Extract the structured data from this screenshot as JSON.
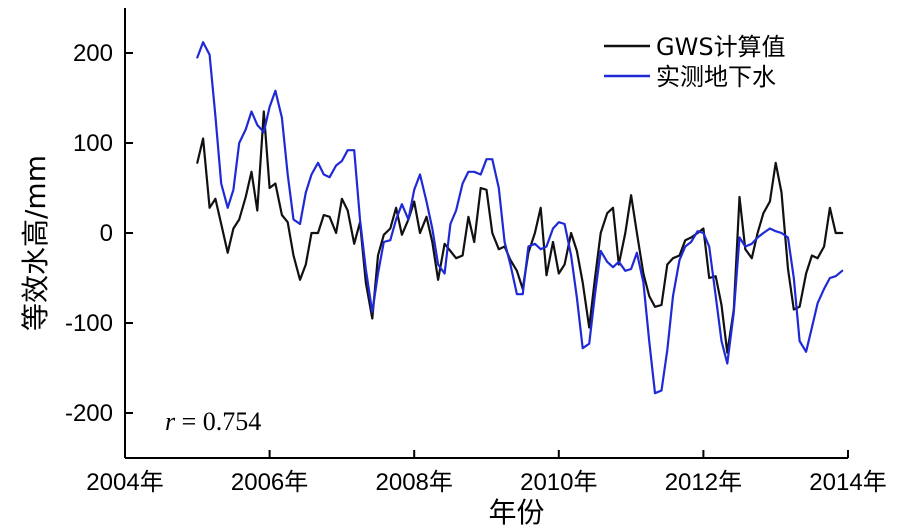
{
  "chart_data": {
    "type": "line",
    "xlabel": "年份",
    "ylabel": "等效水高/mm",
    "xlim": [
      2004,
      2014
    ],
    "ylim": [
      -250,
      250
    ],
    "x_ticks": [
      2004,
      2006,
      2008,
      2010,
      2012,
      2014
    ],
    "x_tick_labels": [
      "2004年",
      "2006年",
      "2008年",
      "2010年",
      "2012年",
      "2014年"
    ],
    "y_ticks": [
      -200,
      -100,
      0,
      100,
      200
    ],
    "y_tick_labels": [
      "-200",
      "-100",
      "0",
      "100",
      "200"
    ],
    "grid": false,
    "legend_position": "top-right",
    "annotation": {
      "prefix": "r",
      "text": " = 0.754"
    },
    "series": [
      {
        "name": "GWS计算值",
        "color": "#111111",
        "points": [
          [
            2005.0,
            78
          ],
          [
            2005.08,
            105
          ],
          [
            2005.17,
            28
          ],
          [
            2005.25,
            38
          ],
          [
            2005.33,
            10
          ],
          [
            2005.42,
            -22
          ],
          [
            2005.5,
            5
          ],
          [
            2005.58,
            15
          ],
          [
            2005.67,
            40
          ],
          [
            2005.75,
            68
          ],
          [
            2005.83,
            25
          ],
          [
            2005.92,
            135
          ],
          [
            2006.0,
            50
          ],
          [
            2006.08,
            55
          ],
          [
            2006.17,
            20
          ],
          [
            2006.25,
            12
          ],
          [
            2006.33,
            -25
          ],
          [
            2006.42,
            -52
          ],
          [
            2006.5,
            -35
          ],
          [
            2006.58,
            0
          ],
          [
            2006.67,
            0
          ],
          [
            2006.75,
            20
          ],
          [
            2006.83,
            18
          ],
          [
            2006.92,
            0
          ],
          [
            2007.0,
            38
          ],
          [
            2007.08,
            25
          ],
          [
            2007.17,
            -12
          ],
          [
            2007.25,
            12
          ],
          [
            2007.33,
            -55
          ],
          [
            2007.42,
            -95
          ],
          [
            2007.5,
            -25
          ],
          [
            2007.58,
            -2
          ],
          [
            2007.67,
            5
          ],
          [
            2007.75,
            28
          ],
          [
            2007.83,
            -2
          ],
          [
            2007.92,
            15
          ],
          [
            2008.0,
            35
          ],
          [
            2008.08,
            0
          ],
          [
            2008.17,
            18
          ],
          [
            2008.25,
            -10
          ],
          [
            2008.33,
            -52
          ],
          [
            2008.42,
            -12
          ],
          [
            2008.5,
            -20
          ],
          [
            2008.58,
            -28
          ],
          [
            2008.67,
            -25
          ],
          [
            2008.75,
            18
          ],
          [
            2008.83,
            -10
          ],
          [
            2008.92,
            50
          ],
          [
            2009.0,
            48
          ],
          [
            2009.08,
            0
          ],
          [
            2009.17,
            -18
          ],
          [
            2009.25,
            -15
          ],
          [
            2009.33,
            -30
          ],
          [
            2009.42,
            -42
          ],
          [
            2009.5,
            -62
          ],
          [
            2009.58,
            -22
          ],
          [
            2009.67,
            0
          ],
          [
            2009.75,
            28
          ],
          [
            2009.83,
            -47
          ],
          [
            2009.92,
            -10
          ],
          [
            2010.0,
            -45
          ],
          [
            2010.08,
            -35
          ],
          [
            2010.17,
            0
          ],
          [
            2010.25,
            -20
          ],
          [
            2010.33,
            -55
          ],
          [
            2010.42,
            -105
          ],
          [
            2010.5,
            -50
          ],
          [
            2010.58,
            0
          ],
          [
            2010.67,
            22
          ],
          [
            2010.75,
            28
          ],
          [
            2010.83,
            -35
          ],
          [
            2010.92,
            0
          ],
          [
            2011.0,
            42
          ],
          [
            2011.08,
            0
          ],
          [
            2011.17,
            -45
          ],
          [
            2011.25,
            -70
          ],
          [
            2011.33,
            -82
          ],
          [
            2011.42,
            -80
          ],
          [
            2011.5,
            -35
          ],
          [
            2011.58,
            -28
          ],
          [
            2011.67,
            -25
          ],
          [
            2011.75,
            -8
          ],
          [
            2011.83,
            -5
          ],
          [
            2011.92,
            0
          ],
          [
            2012.0,
            5
          ],
          [
            2012.08,
            -50
          ],
          [
            2012.17,
            -48
          ],
          [
            2012.25,
            -80
          ],
          [
            2012.33,
            -133
          ],
          [
            2012.42,
            -85
          ],
          [
            2012.5,
            40
          ],
          [
            2012.58,
            -18
          ],
          [
            2012.67,
            -28
          ],
          [
            2012.75,
            0
          ],
          [
            2012.83,
            22
          ],
          [
            2012.92,
            35
          ],
          [
            2013.0,
            78
          ],
          [
            2013.08,
            45
          ],
          [
            2013.17,
            -40
          ],
          [
            2013.25,
            -85
          ],
          [
            2013.33,
            -82
          ],
          [
            2013.42,
            -45
          ],
          [
            2013.5,
            -25
          ],
          [
            2013.58,
            -28
          ],
          [
            2013.67,
            -15
          ],
          [
            2013.75,
            28
          ],
          [
            2013.83,
            0
          ],
          [
            2013.92,
            0
          ]
        ]
      },
      {
        "name": "实测地下水",
        "color": "#1f2ad6",
        "points": [
          [
            2005.0,
            195
          ],
          [
            2005.08,
            212
          ],
          [
            2005.17,
            198
          ],
          [
            2005.25,
            130
          ],
          [
            2005.33,
            55
          ],
          [
            2005.42,
            28
          ],
          [
            2005.5,
            48
          ],
          [
            2005.58,
            100
          ],
          [
            2005.67,
            115
          ],
          [
            2005.75,
            135
          ],
          [
            2005.83,
            120
          ],
          [
            2005.92,
            112
          ],
          [
            2006.0,
            140
          ],
          [
            2006.08,
            158
          ],
          [
            2006.17,
            128
          ],
          [
            2006.25,
            65
          ],
          [
            2006.33,
            15
          ],
          [
            2006.42,
            10
          ],
          [
            2006.5,
            45
          ],
          [
            2006.58,
            65
          ],
          [
            2006.67,
            78
          ],
          [
            2006.75,
            65
          ],
          [
            2006.83,
            62
          ],
          [
            2006.92,
            75
          ],
          [
            2007.0,
            80
          ],
          [
            2007.08,
            92
          ],
          [
            2007.17,
            92
          ],
          [
            2007.25,
            15
          ],
          [
            2007.33,
            -40
          ],
          [
            2007.42,
            -88
          ],
          [
            2007.5,
            -45
          ],
          [
            2007.58,
            -10
          ],
          [
            2007.67,
            -8
          ],
          [
            2007.75,
            15
          ],
          [
            2007.83,
            32
          ],
          [
            2007.92,
            15
          ],
          [
            2008.0,
            48
          ],
          [
            2008.08,
            65
          ],
          [
            2008.17,
            35
          ],
          [
            2008.25,
            5
          ],
          [
            2008.33,
            -35
          ],
          [
            2008.42,
            -45
          ],
          [
            2008.5,
            10
          ],
          [
            2008.58,
            25
          ],
          [
            2008.67,
            55
          ],
          [
            2008.75,
            68
          ],
          [
            2008.83,
            68
          ],
          [
            2008.92,
            65
          ],
          [
            2009.0,
            82
          ],
          [
            2009.08,
            82
          ],
          [
            2009.17,
            50
          ],
          [
            2009.25,
            -10
          ],
          [
            2009.33,
            -35
          ],
          [
            2009.42,
            -68
          ],
          [
            2009.5,
            -68
          ],
          [
            2009.58,
            -15
          ],
          [
            2009.67,
            -12
          ],
          [
            2009.75,
            -18
          ],
          [
            2009.83,
            -15
          ],
          [
            2009.92,
            5
          ],
          [
            2010.0,
            12
          ],
          [
            2010.08,
            10
          ],
          [
            2010.17,
            -25
          ],
          [
            2010.25,
            -72
          ],
          [
            2010.33,
            -128
          ],
          [
            2010.42,
            -123
          ],
          [
            2010.5,
            -68
          ],
          [
            2010.58,
            -20
          ],
          [
            2010.67,
            -32
          ],
          [
            2010.75,
            -38
          ],
          [
            2010.83,
            -32
          ],
          [
            2010.92,
            -42
          ],
          [
            2011.0,
            -40
          ],
          [
            2011.08,
            -22
          ],
          [
            2011.17,
            -55
          ],
          [
            2011.25,
            -120
          ],
          [
            2011.33,
            -178
          ],
          [
            2011.42,
            -175
          ],
          [
            2011.5,
            -130
          ],
          [
            2011.58,
            -70
          ],
          [
            2011.67,
            -30
          ],
          [
            2011.75,
            -15
          ],
          [
            2011.83,
            -10
          ],
          [
            2011.92,
            2
          ],
          [
            2012.0,
            0
          ],
          [
            2012.08,
            -15
          ],
          [
            2012.17,
            -70
          ],
          [
            2012.25,
            -120
          ],
          [
            2012.33,
            -145
          ],
          [
            2012.42,
            -88
          ],
          [
            2012.5,
            -5
          ],
          [
            2012.58,
            -15
          ],
          [
            2012.67,
            -12
          ],
          [
            2012.75,
            -5
          ],
          [
            2012.83,
            0
          ],
          [
            2012.92,
            5
          ],
          [
            2013.0,
            2
          ],
          [
            2013.08,
            0
          ],
          [
            2013.17,
            -5
          ],
          [
            2013.25,
            -50
          ],
          [
            2013.33,
            -120
          ],
          [
            2013.42,
            -132
          ],
          [
            2013.5,
            -105
          ],
          [
            2013.58,
            -78
          ],
          [
            2013.67,
            -62
          ],
          [
            2013.75,
            -50
          ],
          [
            2013.83,
            -48
          ],
          [
            2013.92,
            -42
          ]
        ]
      }
    ]
  }
}
